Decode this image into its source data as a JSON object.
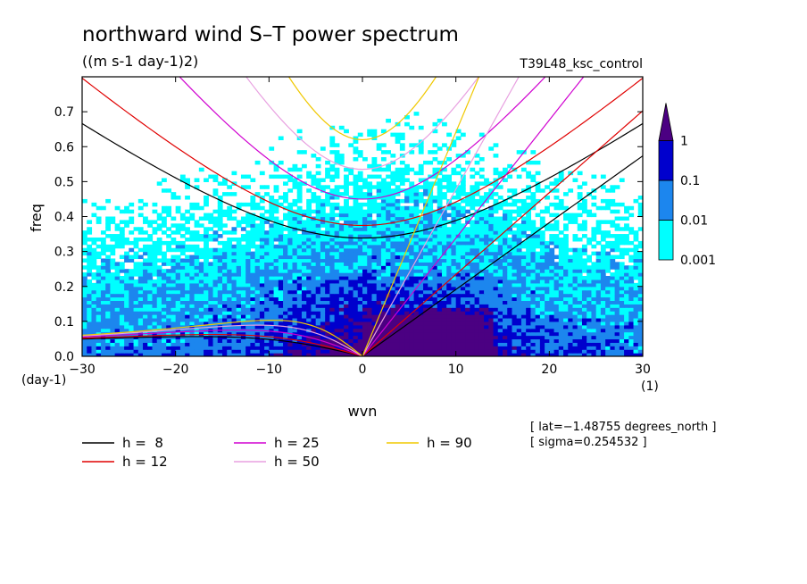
{
  "chart_data": {
    "type": "heatmap",
    "title": "northward wind S–T power spectrum",
    "subtitle": "((m s-1 day-1)2)",
    "run_label": "T39L48_ksc_control",
    "xlabel": "wvn",
    "ylabel": "freq",
    "x_unit": "(1)",
    "y_unit": "(day-1)",
    "xlim": [
      -30,
      30
    ],
    "ylim": [
      0,
      0.8
    ],
    "x_ticks": [
      -30,
      -20,
      -10,
      0,
      10,
      20,
      30
    ],
    "x_tick_labels": [
      "−30",
      "−20",
      "−10",
      "0",
      "10",
      "20",
      "30"
    ],
    "y_ticks": [
      0,
      0.1,
      0.2,
      0.3,
      0.4,
      0.5,
      0.6,
      0.7
    ],
    "y_tick_labels": [
      "0.0",
      "0.1",
      "0.2",
      "0.3",
      "0.4",
      "0.5",
      "0.6",
      "0.7"
    ],
    "contour_levels": [
      0.001,
      0.01,
      0.1,
      1
    ],
    "level_labels": [
      "0.001",
      "0.01",
      "0.1",
      "1"
    ],
    "level_colors": [
      "#00ffff",
      "#1c86ee",
      "#0000cd",
      "#4b0082"
    ],
    "dispersion_curves": [
      {
        "label": "h =  8",
        "h": 8,
        "color": "#000000"
      },
      {
        "label": "h = 12",
        "h": 12,
        "color": "#e00000"
      },
      {
        "label": "h = 25",
        "h": 25,
        "color": "#d000d0"
      },
      {
        "label": "h = 50",
        "h": 50,
        "color": "#e8a0e0"
      },
      {
        "label": "h = 90",
        "h": 90,
        "color": "#f0c800"
      }
    ],
    "annotations": [
      "[ lat=−1.48755 degrees_north ]",
      "[ sigma=0.254532 ]"
    ],
    "legend_placement": "bottom-left",
    "colorbar_placement": "right",
    "grid": false
  }
}
